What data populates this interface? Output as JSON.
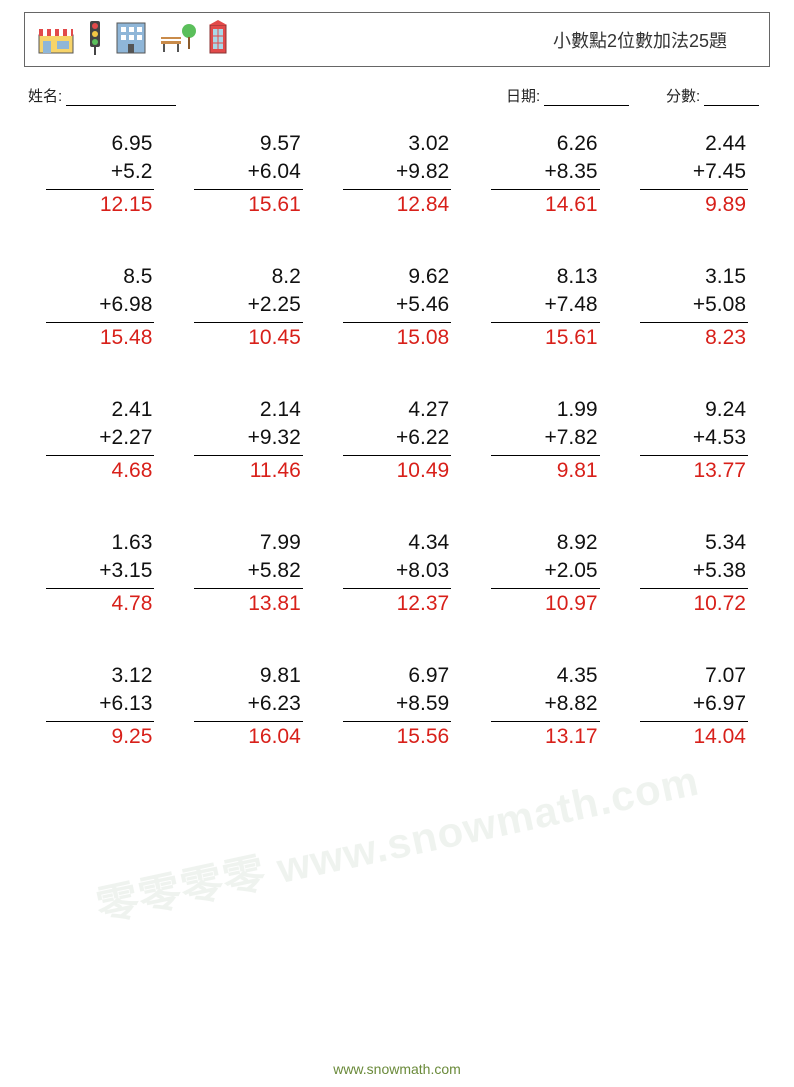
{
  "title": "小數點2位數加法25題",
  "labels": {
    "name": "姓名:",
    "date": "日期:",
    "score": "分數:"
  },
  "underline_widths": {
    "name": 110,
    "date": 85,
    "score": 55
  },
  "answer_color": "#d8201a",
  "icon_colors": {
    "shop_roof": "#e24a4a",
    "shop_body": "#f7d46a",
    "shop_stripe": "#fff",
    "traffic_body": "#444",
    "traffic_red": "#e24a4a",
    "traffic_yellow": "#f3c744",
    "traffic_green": "#5bbf5b",
    "building_body": "#8fb6d8",
    "building_window": "#fff",
    "bench_wood": "#c98b4a",
    "tree_green": "#5bbf5b",
    "tree_trunk": "#8b5a2b",
    "phone_body": "#e24a4a",
    "phone_door": "#a8d8e8"
  },
  "problems": [
    {
      "a": "6.95",
      "b": "+5.2",
      "ans": "12.15"
    },
    {
      "a": "9.57",
      "b": "+6.04",
      "ans": "15.61"
    },
    {
      "a": "3.02",
      "b": "+9.82",
      "ans": "12.84"
    },
    {
      "a": "6.26",
      "b": "+8.35",
      "ans": "14.61"
    },
    {
      "a": "2.44",
      "b": "+7.45",
      "ans": "9.89"
    },
    {
      "a": "8.5",
      "b": "+6.98",
      "ans": "15.48"
    },
    {
      "a": "8.2",
      "b": "+2.25",
      "ans": "10.45"
    },
    {
      "a": "9.62",
      "b": "+5.46",
      "ans": "15.08"
    },
    {
      "a": "8.13",
      "b": "+7.48",
      "ans": "15.61"
    },
    {
      "a": "3.15",
      "b": "+5.08",
      "ans": "8.23"
    },
    {
      "a": "2.41",
      "b": "+2.27",
      "ans": "4.68"
    },
    {
      "a": "2.14",
      "b": "+9.32",
      "ans": "11.46"
    },
    {
      "a": "4.27",
      "b": "+6.22",
      "ans": "10.49"
    },
    {
      "a": "1.99",
      "b": "+7.82",
      "ans": "9.81"
    },
    {
      "a": "9.24",
      "b": "+4.53",
      "ans": "13.77"
    },
    {
      "a": "1.63",
      "b": "+3.15",
      "ans": "4.78"
    },
    {
      "a": "7.99",
      "b": "+5.82",
      "ans": "13.81"
    },
    {
      "a": "4.34",
      "b": "+8.03",
      "ans": "12.37"
    },
    {
      "a": "8.92",
      "b": "+2.05",
      "ans": "10.97"
    },
    {
      "a": "5.34",
      "b": "+5.38",
      "ans": "10.72"
    },
    {
      "a": "3.12",
      "b": "+6.13",
      "ans": "9.25"
    },
    {
      "a": "9.81",
      "b": "+6.23",
      "ans": "16.04"
    },
    {
      "a": "6.97",
      "b": "+8.59",
      "ans": "15.56"
    },
    {
      "a": "4.35",
      "b": "+8.82",
      "ans": "13.17"
    },
    {
      "a": "7.07",
      "b": "+6.97",
      "ans": "14.04"
    }
  ],
  "footer": "www.snowmath.com",
  "footer_color": "#6a8a3a",
  "watermark": "零零零零 www.snowmath.com",
  "watermark_color": "rgba(120,160,120,0.12)"
}
